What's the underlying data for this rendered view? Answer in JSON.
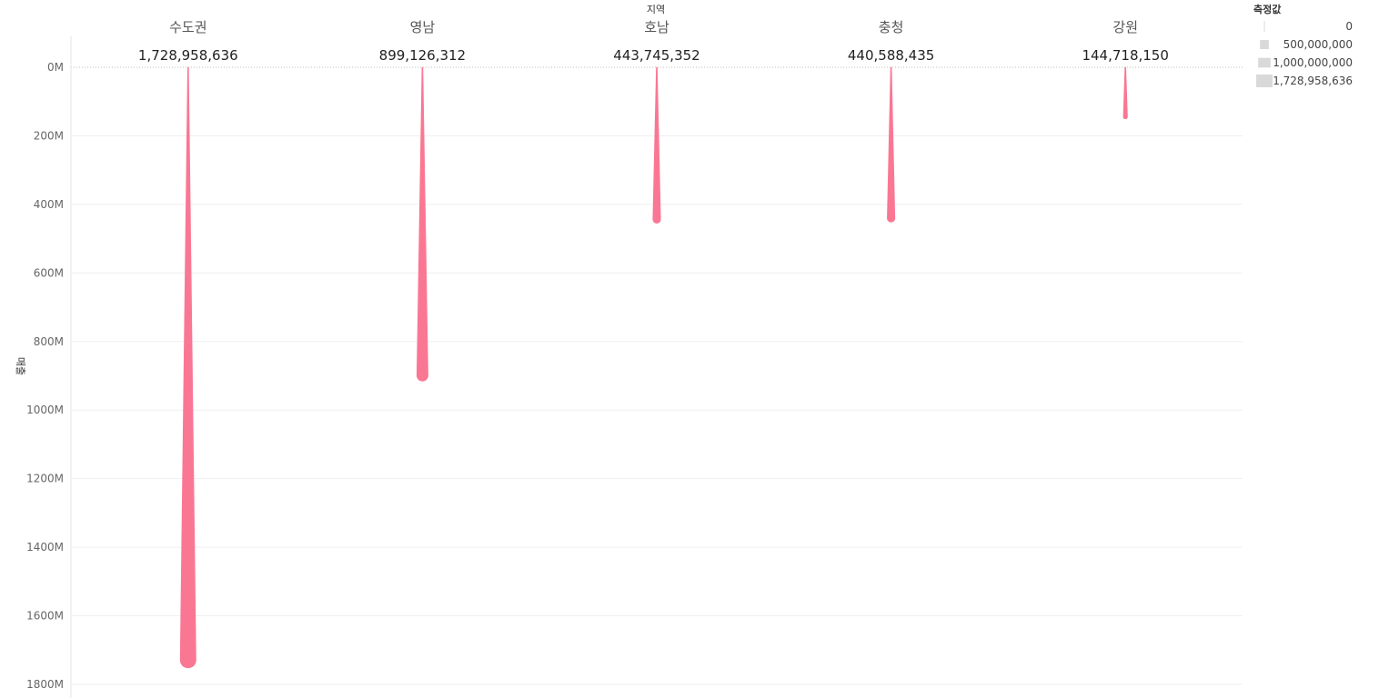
{
  "chart_data": {
    "type": "bar",
    "top_axis_title": "지역",
    "ylabel": "매출",
    "categories": [
      "수도권",
      "영남",
      "호남",
      "충청",
      "강원"
    ],
    "values": [
      1728958636,
      899126312,
      443745352,
      440588435,
      144718150
    ],
    "value_labels": [
      "1,728,958,636",
      "899,126,312",
      "443,745,352",
      "440,588,435",
      "144,718,150"
    ],
    "ylim": [
      0,
      1800000000
    ],
    "y_ticks": [
      {
        "value": 0,
        "label": "0M"
      },
      {
        "value": 200000000,
        "label": "200M"
      },
      {
        "value": 400000000,
        "label": "400M"
      },
      {
        "value": 600000000,
        "label": "600M"
      },
      {
        "value": 800000000,
        "label": "800M"
      },
      {
        "value": 1000000000,
        "label": "1000M"
      },
      {
        "value": 1200000000,
        "label": "1200M"
      },
      {
        "value": 1400000000,
        "label": "1400M"
      },
      {
        "value": 1600000000,
        "label": "1600M"
      },
      {
        "value": 1800000000,
        "label": "1800M"
      }
    ],
    "y_inverted": true,
    "grid": true,
    "mark_color": "#fa7794",
    "legend": {
      "title": "측정값",
      "placement": "top-right",
      "items": [
        {
          "value": 0,
          "label": "0"
        },
        {
          "value": 500000000,
          "label": "500,000,000"
        },
        {
          "value": 1000000000,
          "label": "1,000,000,000"
        },
        {
          "value": 1728958636,
          "label": "1,728,958,636"
        }
      ]
    }
  }
}
